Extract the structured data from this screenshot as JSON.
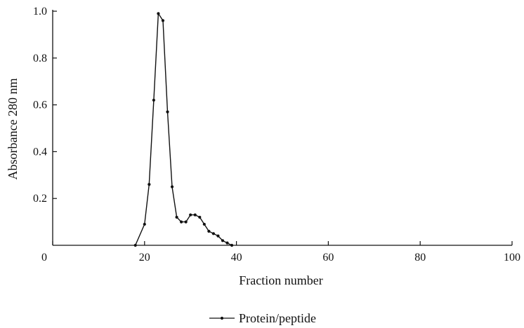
{
  "chart_data": {
    "type": "line",
    "title": "",
    "xlabel": "Fraction number",
    "ylabel": "Absorbance 280 nm",
    "xlim": [
      0,
      100
    ],
    "ylim": [
      0,
      1.0
    ],
    "x_ticks": [
      0,
      20,
      40,
      60,
      80,
      100
    ],
    "x_tick_labels": [
      "0",
      "20",
      "40",
      "60",
      "80",
      "100"
    ],
    "y_ticks": [
      0.2,
      0.4,
      0.6,
      0.8,
      1.0
    ],
    "y_tick_labels": [
      "0.2",
      "0.4",
      "0.6",
      "0.8",
      "1.0"
    ],
    "grid": false,
    "legend_position": "bottom-center",
    "series": [
      {
        "name": "Protein/peptide",
        "color": "#111111",
        "marker": "dot",
        "x": [
          18,
          20,
          21,
          22,
          23,
          24,
          25,
          26,
          27,
          28,
          29,
          30,
          31,
          32,
          33,
          34,
          35,
          36,
          37,
          38,
          39
        ],
        "y": [
          0,
          0.09,
          0.26,
          0.62,
          0.99,
          0.96,
          0.57,
          0.25,
          0.12,
          0.1,
          0.1,
          0.13,
          0.13,
          0.12,
          0.09,
          0.06,
          0.05,
          0.04,
          0.02,
          0.01,
          0
        ]
      }
    ]
  }
}
